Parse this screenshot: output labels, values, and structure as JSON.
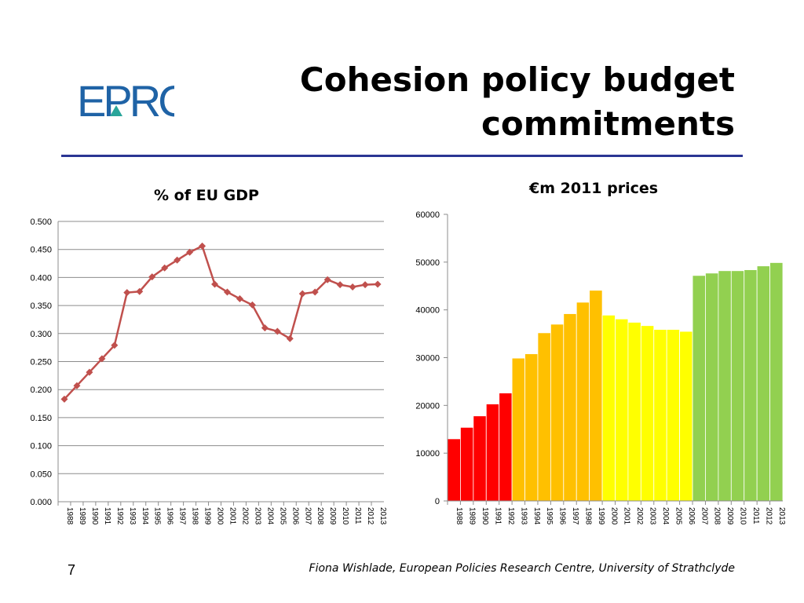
{
  "slide": {
    "title_line1": "Cohesion policy budget",
    "title_line2": "commitments",
    "logo_text": "EPRC",
    "page_number": "7",
    "footer": "Fiona Wishlade, European Policies Research Centre, University of Strathclyde"
  },
  "colors": {
    "rule": "#2a3593",
    "logo": "#1f63a6",
    "logo_triangle": "#29a59a",
    "line": "#c0504d"
  },
  "chart_data": [
    {
      "type": "line",
      "title": "% of EU GDP",
      "x": [
        "1988",
        "1989",
        "1990",
        "1991",
        "1992",
        "1993",
        "1994",
        "1995",
        "1996",
        "1997",
        "1998",
        "1999",
        "2000",
        "2001",
        "2002",
        "2003",
        "2004",
        "2005",
        "2006",
        "2007",
        "2008",
        "2009",
        "2010",
        "2011",
        "2012",
        "2013"
      ],
      "series": [
        {
          "values": [
            0.183,
            0.207,
            0.231,
            0.255,
            0.279,
            0.373,
            0.375,
            0.401,
            0.417,
            0.431,
            0.445,
            0.456,
            0.388,
            0.374,
            0.362,
            0.351,
            0.31,
            0.304,
            0.291,
            0.371,
            0.374,
            0.396,
            0.387,
            0.383,
            0.387,
            0.388
          ]
        }
      ],
      "ylim": [
        0,
        0.5
      ],
      "yticks": [
        "0.000",
        "0.050",
        "0.100",
        "0.150",
        "0.200",
        "0.250",
        "0.300",
        "0.350",
        "0.400",
        "0.450",
        "0.500"
      ],
      "grid": true,
      "marker": "diamond"
    },
    {
      "type": "bar",
      "title": "€m 2011 prices",
      "categories": [
        "1988",
        "1989",
        "1990",
        "1991",
        "1992",
        "1993",
        "1994",
        "1995",
        "1996",
        "1997",
        "1998",
        "1999",
        "2000",
        "2001",
        "2002",
        "2003",
        "2004",
        "2005",
        "2006",
        "2007",
        "2008",
        "2009",
        "2010",
        "2011",
        "2012",
        "2013"
      ],
      "values": [
        13000,
        15400,
        17800,
        20300,
        22600,
        29900,
        30800,
        35200,
        37000,
        39200,
        41600,
        44100,
        38900,
        38100,
        37400,
        36700,
        35900,
        35900,
        35500,
        47200,
        47700,
        48200,
        48200,
        48400,
        49200,
        49900
      ],
      "bar_colors": [
        "#ff0000",
        "#ff0000",
        "#ff0000",
        "#ff0000",
        "#ff0000",
        "#ffc000",
        "#ffc000",
        "#ffc000",
        "#ffc000",
        "#ffc000",
        "#ffc000",
        "#ffc000",
        "#ffff00",
        "#ffff00",
        "#ffff00",
        "#ffff00",
        "#ffff00",
        "#ffff00",
        "#ffff00",
        "#92d050",
        "#92d050",
        "#92d050",
        "#92d050",
        "#92d050",
        "#92d050",
        "#92d050"
      ],
      "ylim": [
        0,
        60000
      ],
      "yticks": [
        "0",
        "10000",
        "20000",
        "30000",
        "40000",
        "50000",
        "60000"
      ],
      "grid": false
    }
  ]
}
